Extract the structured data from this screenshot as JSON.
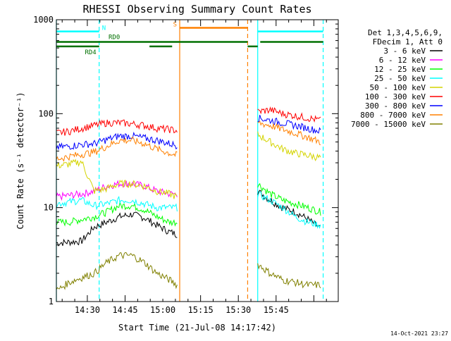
{
  "chart_data": {
    "type": "line",
    "title": "RHESSI Observing Summary Count Rates",
    "xlabel": "Start Time (21-Jul-08 14:17:42)",
    "ylabel": "Count Rate (s⁻¹ detector⁻¹)",
    "yscale": "log",
    "ylim": [
      1,
      1000
    ],
    "y_ticks": [
      {
        "value": 1,
        "label": "1"
      },
      {
        "value": 10,
        "label": "10"
      },
      {
        "value": 100,
        "label": "100"
      },
      {
        "value": 1000,
        "label": "1000"
      }
    ],
    "x_unit": "minutes after 14:17:42",
    "xlim": [
      0,
      112
    ],
    "x_ticks": [
      {
        "value": 12.3,
        "label": "14:30"
      },
      {
        "value": 27.3,
        "label": "14:45"
      },
      {
        "value": 42.3,
        "label": "15:00"
      },
      {
        "value": 57.3,
        "label": "15:15"
      },
      {
        "value": 72.3,
        "label": "15:30"
      },
      {
        "value": 87.3,
        "label": "15:45"
      }
    ],
    "legend": {
      "placement": "right",
      "header": [
        "Det 1,3,4,5,6,9,",
        "FDecim 1, Att 0"
      ],
      "entries": [
        {
          "name": "3 - 6 keV",
          "color": "#000000"
        },
        {
          "name": "6 - 12 keV",
          "color": "#ff00ff"
        },
        {
          "name": "12 - 25 keV",
          "color": "#00ff00"
        },
        {
          "name": "25 - 50 keV",
          "color": "#00ffff"
        },
        {
          "name": "50 - 100 keV",
          "color": "#d4d400"
        },
        {
          "name": "100 - 300 keV",
          "color": "#ff0000"
        },
        {
          "name": "300 - 800 keV",
          "color": "#0000ff"
        },
        {
          "name": "800 - 7000 keV",
          "color": "#ff8000"
        },
        {
          "name": "7000 - 15000 keV",
          "color": "#808000"
        }
      ]
    },
    "series": [
      {
        "name": "3 - 6 keV",
        "color": "#000000",
        "segments": [
          {
            "x": [
              0,
              5,
              10,
              15,
              20,
              25,
              30,
              35,
              40,
              45,
              48
            ],
            "y": [
              4.2,
              4.3,
              4.4,
              6.2,
              7.0,
              8.0,
              8.5,
              7.8,
              6.5,
              5.5,
              5.2
            ]
          },
          {
            "x": [
              80,
              85,
              90,
              95,
              100,
              105
            ],
            "y": [
              15,
              12,
              10,
              9.0,
              7.5,
              6.0
            ]
          }
        ]
      },
      {
        "name": "6 - 12 keV",
        "color": "#ff00ff",
        "segments": [
          {
            "x": [
              0,
              5,
              10,
              15,
              20,
              25,
              30,
              35,
              40,
              45,
              48
            ],
            "y": [
              13,
              13.5,
              14,
              15,
              17,
              18,
              18,
              17,
              15,
              14,
              14
            ]
          }
        ]
      },
      {
        "name": "12 - 25 keV",
        "color": "#00ff00",
        "segments": [
          {
            "x": [
              0,
              5,
              10,
              15,
              20,
              25,
              30,
              35,
              40,
              45,
              48
            ],
            "y": [
              7,
              7,
              7.5,
              8.0,
              9.0,
              10.5,
              10.5,
              9.5,
              8.0,
              7.0,
              7.0
            ]
          },
          {
            "x": [
              80,
              85,
              90,
              95,
              100,
              105
            ],
            "y": [
              18,
              14,
              12,
              11,
              10,
              9.0
            ]
          }
        ]
      },
      {
        "name": "25 - 50 keV",
        "color": "#00ffff",
        "segments": [
          {
            "x": [
              0,
              5,
              10,
              15,
              20,
              25,
              30,
              35,
              40,
              45,
              48
            ],
            "y": [
              11,
              11.5,
              12,
              10.5,
              11,
              12,
              12,
              11,
              10,
              10,
              10
            ]
          },
          {
            "x": [
              80,
              85,
              90,
              95,
              100,
              105
            ],
            "y": [
              14,
              12,
              10,
              8.0,
              7.0,
              6.5
            ]
          }
        ]
      },
      {
        "name": "50 - 100 keV",
        "color": "#d4d400",
        "segments": [
          {
            "x": [
              0,
              5,
              10,
              15,
              20,
              25,
              30,
              35,
              40,
              45,
              48
            ],
            "y": [
              28,
              29,
              31,
              15,
              16,
              18,
              18,
              17,
              15,
              14,
              13
            ]
          },
          {
            "x": [
              80,
              85,
              90,
              95,
              100,
              105
            ],
            "y": [
              60,
              50,
              42,
              38,
              36,
              34
            ]
          }
        ]
      },
      {
        "name": "100 - 300 keV",
        "color": "#ff0000",
        "segments": [
          {
            "x": [
              0,
              5,
              10,
              15,
              20,
              25,
              30,
              35,
              40,
              45,
              48
            ],
            "y": [
              62,
              65,
              70,
              75,
              80,
              80,
              78,
              75,
              70,
              68,
              66
            ]
          },
          {
            "x": [
              80,
              85,
              90,
              95,
              100,
              105
            ],
            "y": [
              105,
              110,
              100,
              95,
              90,
              85
            ]
          }
        ]
      },
      {
        "name": "300 - 800 keV",
        "color": "#0000ff",
        "segments": [
          {
            "x": [
              0,
              5,
              10,
              15,
              20,
              25,
              30,
              35,
              40,
              45,
              48
            ],
            "y": [
              44,
              45,
              47,
              48,
              53,
              58,
              58,
              55,
              52,
              48,
              46
            ]
          },
          {
            "x": [
              80,
              85,
              90,
              95,
              100,
              105
            ],
            "y": [
              90,
              85,
              80,
              75,
              70,
              65
            ]
          }
        ]
      },
      {
        "name": "800 - 7000 keV",
        "color": "#ff8000",
        "segments": [
          {
            "x": [
              0,
              5,
              10,
              15,
              20,
              25,
              30,
              35,
              40,
              45,
              48
            ],
            "y": [
              33,
              35,
              37,
              39,
              45,
              52,
              52,
              48,
              42,
              38,
              36
            ]
          },
          {
            "x": [
              80,
              85,
              90,
              95,
              100,
              105
            ],
            "y": [
              80,
              75,
              68,
              62,
              56,
              50
            ]
          }
        ]
      },
      {
        "name": "7000 - 15000 keV",
        "color": "#808000",
        "segments": [
          {
            "x": [
              0,
              5,
              10,
              15,
              20,
              25,
              30,
              35,
              40,
              45,
              48
            ],
            "y": [
              1.3,
              1.6,
              1.8,
              2.0,
              2.6,
              3.1,
              3.1,
              2.6,
              2.0,
              1.7,
              1.5
            ]
          },
          {
            "x": [
              80,
              85,
              90,
              95,
              100,
              105
            ],
            "y": [
              2.5,
              2.0,
              1.7,
              1.6,
              1.5,
              1.5
            ]
          }
        ]
      }
    ],
    "vlines": [
      {
        "x": 0,
        "color": "#00ffff",
        "style": "solid"
      },
      {
        "x": 17,
        "color": "#00ffff",
        "style": "dashed"
      },
      {
        "x": 49,
        "color": "#ff8000",
        "style": "solid"
      },
      {
        "x": 76,
        "color": "#ff8000",
        "style": "dashed"
      },
      {
        "x": 80,
        "color": "#00ffff",
        "style": "solid"
      },
      {
        "x": 106,
        "color": "#00ffff",
        "style": "dashed"
      }
    ],
    "state_bars": [
      {
        "label": "N",
        "color": "#00ffff",
        "value": 750,
        "x_start": 0,
        "x_end": 17,
        "label_at": "end"
      },
      {
        "label": "N",
        "color": "#00ffff",
        "value": 750,
        "x_start": 80,
        "x_end": 106,
        "label_at": "none"
      },
      {
        "label": "S",
        "color": "#ff8000",
        "value": 820,
        "x_start": 49,
        "x_end": 76,
        "label_at": "start"
      },
      {
        "label": "RD0",
        "color": "#007000",
        "value": 580,
        "x_start": 0,
        "x_end": 76,
        "label_at": "above-mid"
      },
      {
        "label": "RD4",
        "color": "#007000",
        "value": 520,
        "x_start": 0,
        "x_end": 17,
        "label_at": "below-end"
      },
      {
        "label": "RD4",
        "color": "#007000",
        "value": 520,
        "x_start": 37,
        "x_end": 46,
        "label_at": "none"
      },
      {
        "label": "RD4",
        "color": "#007000",
        "value": 520,
        "x_start": 76,
        "x_end": 80,
        "label_at": "none"
      },
      {
        "label": "RD4",
        "color": "#007000",
        "value": 580,
        "x_start": 81,
        "x_end": 106,
        "label_at": "none"
      }
    ]
  },
  "footer": {
    "timestamp": "14-Oct-2021 23:27"
  }
}
